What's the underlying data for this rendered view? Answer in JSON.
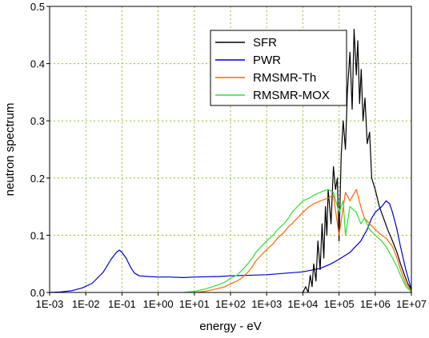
{
  "chart_data": {
    "type": "line",
    "xlabel": "energy - eV",
    "ylabel": "neutron spectrum",
    "x_scale": "log",
    "xlim": [
      0.001,
      10000000
    ],
    "ylim": [
      0,
      0.5
    ],
    "x_tick_labels": [
      "1E-03",
      "1E-02",
      "1E-01",
      "1E+00",
      "1E+01",
      "1E+02",
      "1E+03",
      "1E+04",
      "1E+05",
      "1E+06",
      "1E+07"
    ],
    "y_tick_labels": [
      "0.0",
      "0.1",
      "0.2",
      "0.3",
      "0.4",
      "0.5"
    ],
    "grid": true,
    "legend_position": "top-right",
    "series": [
      {
        "name": "SFR",
        "color": "#000000",
        "x": [
          10000,
          12000,
          14000,
          16000,
          18000,
          20000,
          23000,
          26000,
          30000,
          34000,
          38000,
          42000,
          46000,
          50000,
          60000,
          70000,
          80000,
          90000,
          100000,
          115000,
          130000,
          150000,
          170000,
          200000,
          230000,
          260000,
          300000,
          330000,
          370000,
          410000,
          460000,
          520000,
          600000,
          700000,
          800000,
          1000000,
          1300000,
          1700000,
          2200000,
          3000000,
          4000000,
          5000000,
          6500000,
          8000000,
          10000000
        ],
        "y": [
          0.0,
          0.01,
          0.0,
          0.03,
          0.01,
          0.05,
          0.02,
          0.09,
          0.04,
          0.12,
          0.06,
          0.15,
          0.1,
          0.18,
          0.12,
          0.22,
          0.18,
          0.2,
          0.09,
          0.24,
          0.3,
          0.25,
          0.35,
          0.42,
          0.32,
          0.46,
          0.38,
          0.44,
          0.33,
          0.39,
          0.3,
          0.34,
          0.26,
          0.28,
          0.2,
          0.18,
          0.15,
          0.13,
          0.11,
          0.09,
          0.07,
          0.05,
          0.03,
          0.015,
          0.005
        ]
      },
      {
        "name": "PWR",
        "color": "#0000cc",
        "x": [
          0.001,
          0.002,
          0.004,
          0.008,
          0.015,
          0.03,
          0.05,
          0.07,
          0.085,
          0.1,
          0.13,
          0.17,
          0.22,
          0.3,
          0.5,
          1,
          2,
          5,
          10,
          50,
          100,
          1000,
          10000,
          30000,
          60000,
          100000,
          200000,
          400000,
          600000,
          800000,
          1000000,
          1500000,
          2000000,
          2500000,
          3000000,
          4000000,
          5000000,
          7000000,
          10000000
        ],
        "y": [
          0.0,
          0.001,
          0.003,
          0.008,
          0.016,
          0.035,
          0.058,
          0.07,
          0.074,
          0.07,
          0.06,
          0.045,
          0.034,
          0.029,
          0.028,
          0.027,
          0.027,
          0.026,
          0.027,
          0.028,
          0.029,
          0.031,
          0.036,
          0.042,
          0.05,
          0.058,
          0.07,
          0.09,
          0.11,
          0.13,
          0.14,
          0.15,
          0.16,
          0.155,
          0.14,
          0.11,
          0.08,
          0.04,
          0.005
        ]
      },
      {
        "name": "RMSMR-Th",
        "color": "#ff6600",
        "x": [
          10,
          20,
          40,
          70,
          100,
          150,
          200,
          300,
          400,
          500,
          700,
          1000,
          1500,
          2000,
          3000,
          4000,
          5000,
          7000,
          10000,
          15000,
          20000,
          30000,
          50000,
          70000,
          100000,
          150000,
          200000,
          300000,
          400000,
          500000,
          700000,
          1000000,
          1500000,
          2000000,
          3000000,
          4000000,
          5000000,
          7000000,
          10000000
        ],
        "y": [
          0.0,
          0.002,
          0.006,
          0.01,
          0.015,
          0.02,
          0.025,
          0.035,
          0.045,
          0.055,
          0.065,
          0.075,
          0.085,
          0.095,
          0.105,
          0.115,
          0.12,
          0.13,
          0.14,
          0.15,
          0.155,
          0.16,
          0.165,
          0.17,
          0.1,
          0.175,
          0.16,
          0.18,
          0.15,
          0.13,
          0.12,
          0.11,
          0.1,
          0.095,
          0.08,
          0.06,
          0.04,
          0.015,
          0.002
        ]
      },
      {
        "name": "RMSMR-MOX",
        "color": "#33dd33",
        "x": [
          5,
          10,
          20,
          40,
          70,
          100,
          150,
          200,
          300,
          400,
          500,
          700,
          1000,
          1500,
          2000,
          3000,
          4000,
          5000,
          7000,
          10000,
          15000,
          20000,
          30000,
          50000,
          70000,
          100000,
          130000,
          150000,
          200000,
          300000,
          400000,
          500000,
          700000,
          1000000,
          1500000,
          2000000,
          3000000,
          4000000,
          5000000,
          7000000,
          10000000
        ],
        "y": [
          0.0,
          0.002,
          0.006,
          0.012,
          0.018,
          0.025,
          0.03,
          0.038,
          0.05,
          0.06,
          0.07,
          0.08,
          0.09,
          0.1,
          0.11,
          0.12,
          0.13,
          0.14,
          0.15,
          0.16,
          0.165,
          0.17,
          0.175,
          0.18,
          0.175,
          0.14,
          0.16,
          0.1,
          0.15,
          0.14,
          0.12,
          0.13,
          0.11,
          0.1,
          0.09,
          0.08,
          0.06,
          0.045,
          0.03,
          0.01,
          0.001
        ]
      }
    ]
  }
}
